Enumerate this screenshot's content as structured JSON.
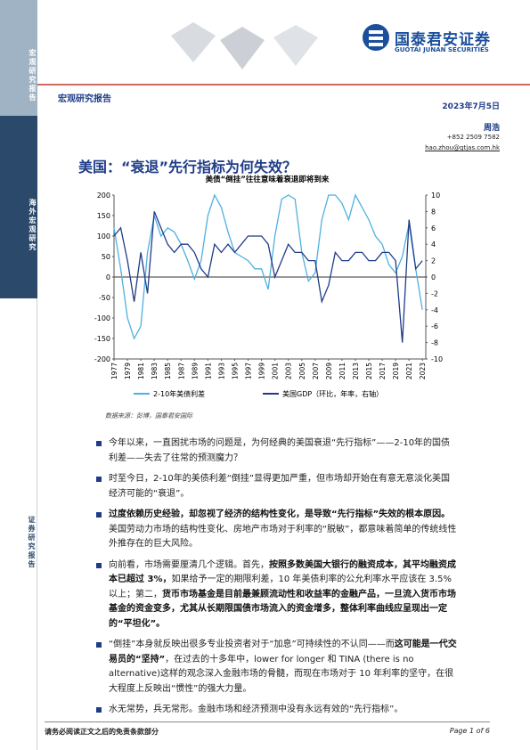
{
  "sidebar": [
    "宏观研究报告",
    "海外宏观研究",
    "证券研究报告"
  ],
  "header": {
    "logo_cn": "国泰君安证券",
    "logo_en": "GUOTAI JUNAN SECURITIES",
    "report_type": "宏观研究报告",
    "date": "2023年7月5日"
  },
  "author": {
    "name": "周浩",
    "phone": "+852 2509 7582",
    "email": "hao.zhou@gtjas.com.hk"
  },
  "title": "美国：“衰退”先行指标为何失效？",
  "chart_data": {
    "type": "line",
    "title": "美债“倒挂”往往意味着衰退即将到来",
    "x": [
      1977,
      1978,
      1979,
      1980,
      1981,
      1982,
      1983,
      1984,
      1985,
      1986,
      1987,
      1988,
      1989,
      1990,
      1991,
      1992,
      1993,
      1994,
      1995,
      1996,
      1997,
      1998,
      1999,
      2000,
      2001,
      2002,
      2003,
      2004,
      2005,
      2006,
      2007,
      2008,
      2009,
      2010,
      2011,
      2012,
      2013,
      2014,
      2015,
      2016,
      2017,
      2018,
      2019,
      2020,
      2021,
      2022,
      2023
    ],
    "xlim": [
      1977,
      2023.5
    ],
    "xticks": [
      1977,
      1979,
      1981,
      1983,
      1985,
      1987,
      1989,
      1991,
      1993,
      1995,
      1997,
      1999,
      2001,
      2003,
      2005,
      2007,
      2009,
      2011,
      2013,
      2015,
      2017,
      2019,
      2021,
      2023
    ],
    "ylim": [
      -200,
      200
    ],
    "yticks": [
      200,
      150,
      100,
      50,
      0,
      -50,
      -100,
      -150,
      -200
    ],
    "y2lim": [
      -10,
      10
    ],
    "y2ticks": [
      10,
      8,
      6,
      4,
      2,
      0,
      -2,
      -4,
      -6,
      -8,
      -10
    ],
    "series": [
      {
        "name": "2-10年美债利差",
        "color": "#4fb0e0",
        "values": [
          120,
          20,
          -100,
          -150,
          -120,
          60,
          150,
          100,
          120,
          110,
          80,
          40,
          -5,
          40,
          150,
          200,
          170,
          110,
          60,
          50,
          40,
          20,
          20,
          -30,
          100,
          190,
          200,
          190,
          60,
          -10,
          10,
          140,
          200,
          200,
          180,
          140,
          200,
          170,
          140,
          100,
          80,
          30,
          10,
          50,
          130,
          20,
          -80
        ]
      },
      {
        "name": "美国GDP（环比，年率，右轴）",
        "color": "#1f3c88",
        "axis": "y2",
        "values": [
          5,
          6,
          2,
          -3,
          3,
          -2,
          8,
          6,
          4,
          3,
          4,
          4,
          3,
          1,
          0,
          4,
          3,
          4,
          3,
          4,
          5,
          5,
          5,
          4,
          0,
          2,
          4,
          3,
          3,
          2,
          2,
          -3,
          -1,
          3,
          2,
          2,
          3,
          3,
          2,
          2,
          3,
          3,
          2,
          -8,
          7,
          1,
          2
        ]
      }
    ]
  },
  "source": "数据来源：彭博，国泰君安国际",
  "bullets": [
    [
      {
        "text": "今年以来，一直困扰市场的问题是，为何经典的美国衰退“先行指标”——2-10年的国债利差——失去了往常的预测魔力？",
        "bold": false
      }
    ],
    [
      {
        "text": "时至今日，2-10年的美债利差“倒挂”显得更加严重，但市场却开始在有意无意淡化美国经济可能的“衰退”。",
        "bold": false
      }
    ],
    [
      {
        "text": "过度依赖历史经验，却忽视了经济的结构性变化，是导致“先行指标”失效的根本原因。",
        "bold": true
      },
      {
        "text": "美国劳动力市场的结构性变化、房地产市场对于利率的“脱敏”，都意味着简单的传统线性外推存在的巨大风险。",
        "bold": false
      }
    ],
    [
      {
        "text": "向前看，市场需要厘清几个逻辑。首先，",
        "bold": false
      },
      {
        "text": "按照多数美国大银行的融资成本，其平均融资成本已超过 3%，",
        "bold": true
      },
      {
        "text": "如果给予一定的期限利差，10 年美债利率的公允利率水平应该在 3.5%以上；第二，",
        "bold": false
      },
      {
        "text": "货币市场基金是目前最兼顾流动性和收益率的金融产品，一旦流入货币市场基金的资金变多，尤其从长期限国债市场流入的资金增多，整体利率曲线应呈现出一定的“平坦化”。",
        "bold": true
      }
    ],
    [
      {
        "text": "“倒挂”本身就反映出很多专业投资者对于“加息”可持续性的不认同——而",
        "bold": false
      },
      {
        "text": "这可能是一代交易员的“坚持”",
        "bold": true
      },
      {
        "text": "，在过去的十多年中，lower for longer 和 TINA (there is no alternative)这样的观念深入金融市场的骨髓，而现在市场对于 10 年利率的坚守，在很大程度上反映出“惯性”的强大力量。",
        "bold": false
      }
    ],
    [
      {
        "text": "水无常势，兵无常形。金融市场和经济预测中没有永远有效的“先行指标”。",
        "bold": false
      }
    ]
  ],
  "footer": {
    "disclaimer": "请务必阅读正文之后的免责条款部分",
    "page": "Page 1 of 6"
  }
}
